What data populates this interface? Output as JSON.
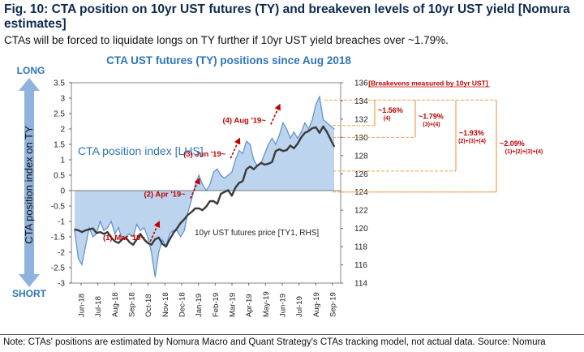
{
  "figure": {
    "title": "Fig. 10: CTA position on 10yr UST futures (TY) and breakeven levels of 10yr UST yield [Nomura estimates]",
    "subtitle": "CTAs will be forced to liquidate longs on TY further if 10yr UST yield breaches over ~1.79%.",
    "note": "Note: CTAs' positions are estimated by Nomura Macro and Quant Strategy's CTAs tracking model, not actual data. Source: Nomura"
  },
  "colors": {
    "area": "#bcd4ee",
    "area_line": "#5b8fce",
    "price": "#3a3a3a",
    "accent": "#c00000",
    "title": "#2e75b6",
    "arrow": "#8fb3dd",
    "guide": "#f0a050"
  },
  "chart_data": {
    "type": "area",
    "title": "CTA UST futures (TY) positions  since Aug 2018",
    "x_labels": [
      "Jun-18",
      "Jul-18",
      "Aug-18",
      "Sep-18",
      "Oct-18",
      "Nov-18",
      "Dec-18",
      "Jan-19",
      "Feb-19",
      "Mar-19",
      "Apr-19",
      "May-19",
      "Jun-19",
      "Jul-19",
      "Aug-19",
      "Sep-19"
    ],
    "ylabel": "CTA position index on TY",
    "ylabel_top": "LONG",
    "ylabel_bottom": "SHORT",
    "ylim": [
      -3,
      3.5
    ],
    "y_ticks": [
      "3.5",
      "3",
      "2.5",
      "2",
      "1.5",
      "1",
      "0.5",
      "0",
      "-0.5",
      "-1",
      "-1.5",
      "-2",
      "-2.5",
      "-3"
    ],
    "y2lim": [
      114,
      136
    ],
    "y2_ticks": [
      "136",
      "134",
      "132",
      "130",
      "128",
      "126",
      "124",
      "122",
      "120",
      "118",
      "116",
      "114"
    ],
    "series": [
      {
        "name": "CTA position index [LHS]",
        "axis": "left",
        "kind": "area",
        "values": [
          -1.3,
          -2.2,
          -2.4,
          -1.8,
          -1.2,
          -1.5,
          -1.4,
          -1.0,
          -1.3,
          -1.2,
          -1.0,
          -1.4,
          -1.2,
          -1.6,
          -1.5,
          -1.4,
          -1.5,
          -1.1,
          -1.3,
          -1.2,
          -1.5,
          -2.0,
          -2.8,
          -2.0,
          -1.6,
          -1.8,
          -1.4,
          -1.3,
          -1.3,
          -1.5,
          -1.3,
          -0.7,
          -0.3,
          0.2,
          0.5,
          0.2,
          0.0,
          0.2,
          0.6,
          0.7,
          0.5,
          0.4,
          0.5,
          0.6,
          1.0,
          1.3,
          1.2,
          1.6,
          1.5,
          1.0,
          0.8,
          0.9,
          1.2,
          1.5,
          1.7,
          1.5,
          1.8,
          2.2,
          2.0,
          1.7,
          1.9,
          1.7,
          1.9,
          2.2,
          2.0,
          2.3,
          2.8,
          3.05,
          2.3,
          2.2,
          2.1,
          2.0
        ]
      },
      {
        "name": "10yr UST futures price [TY1, RHS]",
        "axis": "right",
        "kind": "line",
        "values": [
          119.9,
          119.8,
          119.6,
          119.8,
          119.9,
          120.0,
          119.5,
          119.6,
          119.4,
          119.6,
          119.0,
          118.6,
          118.4,
          118.8,
          119.0,
          118.5,
          118.2,
          118.8,
          119.4,
          118.8,
          118.4,
          118.2,
          118.8,
          119.0,
          118.3,
          118.0,
          118.8,
          119.5,
          120.0,
          120.6,
          121.0,
          121.5,
          121.8,
          122.2,
          122.2,
          122.0,
          122.4,
          123.0,
          123.0,
          122.7,
          123.8,
          124.0,
          124.2,
          123.6,
          124.5,
          125.0,
          125.2,
          126.5,
          126.8,
          126.5,
          126.9,
          127.2,
          127.0,
          127.1,
          127.3,
          128.5,
          128.7,
          128.5,
          128.6,
          129.1,
          128.8,
          129.3,
          130.0,
          130.5,
          130.7,
          131.0,
          131.1,
          130.5,
          131.2,
          130.6,
          129.8,
          129.0
        ]
      }
    ],
    "legend": {
      "area": "CTA position index [LHS]",
      "line": "10yr UST futures price [TY1, RHS]"
    },
    "annotations": [
      {
        "text": "(1) Mar '19~",
        "x": 22,
        "y": -1.6
      },
      {
        "text": "(2) Apr '19~",
        "x": 33,
        "y": -0.2
      },
      {
        "text": "(3) Jun '19~",
        "x": 44,
        "y": 1.1
      },
      {
        "text": "(4) Aug '19~",
        "x": 55,
        "y": 2.2
      }
    ],
    "breakevens": {
      "label": "Breakevens measured by 10yr UST",
      "start_price": 124,
      "levels": [
        {
          "price": 131.3,
          "text": "~1.56%",
          "sub": "(4)"
        },
        {
          "price": 130.0,
          "text": "~1.79%",
          "sub": "(3)+(4)"
        },
        {
          "price": 126.3,
          "text": "~1.93%",
          "sub": "(2)+(3)+(4)"
        },
        {
          "price": 124.0,
          "text": "~2.09%",
          "sub": "(1)+(2)+(3)+(4)"
        }
      ],
      "top_price": 134.1
    }
  }
}
